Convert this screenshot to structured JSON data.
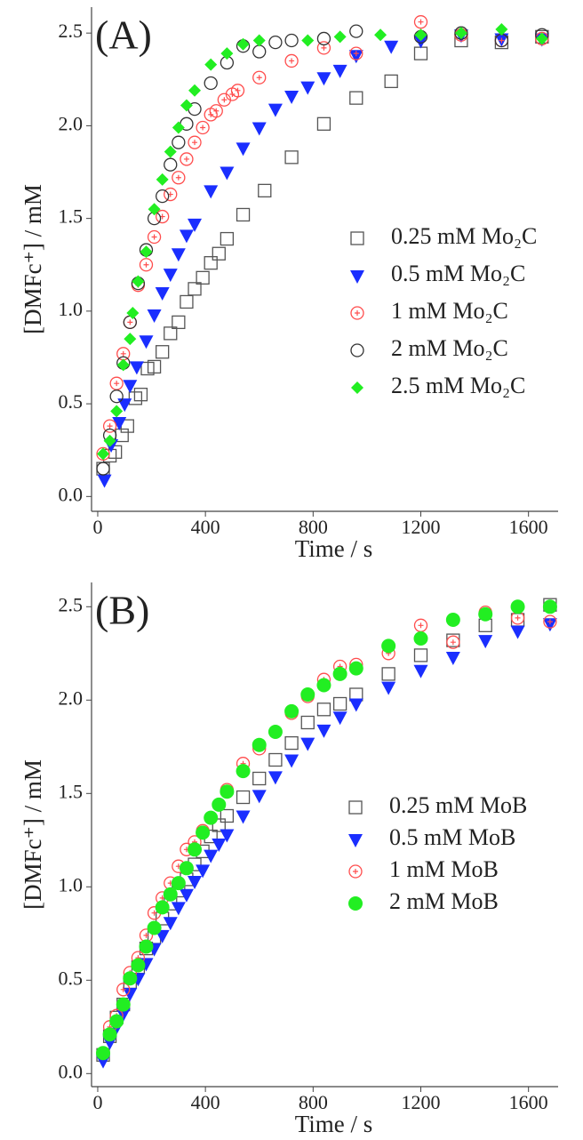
{
  "chart_data": [
    {
      "type": "scatter",
      "annotation": "(A)",
      "xlabel": "Time / s",
      "ylabel": "[DMFc⁺] / mM",
      "xlim": [
        -23,
        1710
      ],
      "ylim": [
        -0.08,
        2.64
      ],
      "xticks": [
        0,
        400,
        800,
        1200,
        1600
      ],
      "yticks": [
        {
          "value": 0,
          "label": "0.0"
        },
        0.5,
        {
          "value": 1,
          "label": "1.0"
        },
        1.5,
        {
          "value": 2,
          "label": "2.0"
        },
        2.5
      ],
      "series": [
        {
          "name": "0.25 mM Mo₂C",
          "color": "#555555",
          "marker": "square",
          "x": [
            20,
            45,
            65,
            90,
            110,
            140,
            160,
            185,
            210,
            240,
            270,
            300,
            330,
            360,
            390,
            420,
            450,
            480,
            540,
            620,
            720,
            840,
            960,
            1090,
            1200,
            1350,
            1500,
            1650
          ],
          "values": [
            0.15,
            0.22,
            0.24,
            0.33,
            0.38,
            0.53,
            0.55,
            0.69,
            0.7,
            0.78,
            0.88,
            0.94,
            1.05,
            1.12,
            1.18,
            1.26,
            1.31,
            1.39,
            1.52,
            1.65,
            1.83,
            2.01,
            2.15,
            2.24,
            2.39,
            2.46,
            2.45,
            2.48
          ]
        },
        {
          "name": "0.5 mM Mo₂C",
          "color": "#1a2eff",
          "marker": "triangle-down",
          "x": [
            25,
            50,
            80,
            100,
            120,
            145,
            180,
            210,
            240,
            270,
            300,
            330,
            360,
            420,
            480,
            540,
            600,
            660,
            720,
            780,
            840,
            900,
            960,
            1090,
            1200,
            1350,
            1500,
            1650
          ],
          "values": [
            0.09,
            0.28,
            0.4,
            0.5,
            0.6,
            0.7,
            0.84,
            0.98,
            1.1,
            1.2,
            1.31,
            1.41,
            1.47,
            1.65,
            1.75,
            1.88,
            1.99,
            2.09,
            2.16,
            2.21,
            2.26,
            2.3,
            2.38,
            2.43,
            2.46,
            2.49,
            2.47,
            2.47
          ]
        },
        {
          "name": "1 mM Mo₂C",
          "color": "#ff4d4d",
          "marker": "circle-plus",
          "x": [
            20,
            45,
            70,
            95,
            120,
            150,
            180,
            210,
            240,
            270,
            300,
            330,
            360,
            390,
            420,
            440,
            470,
            500,
            520,
            600,
            720,
            840,
            960,
            1200,
            1350,
            1500,
            1650
          ],
          "values": [
            0.23,
            0.38,
            0.61,
            0.77,
            0.94,
            1.14,
            1.25,
            1.4,
            1.51,
            1.63,
            1.72,
            1.82,
            1.91,
            1.99,
            2.06,
            2.08,
            2.14,
            2.17,
            2.19,
            2.26,
            2.35,
            2.42,
            2.39,
            2.56,
            2.49,
            2.46,
            2.47
          ]
        },
        {
          "name": "2 mM Mo₂C",
          "color": "#333333",
          "marker": "circle",
          "x": [
            20,
            45,
            70,
            95,
            120,
            150,
            180,
            210,
            240,
            270,
            300,
            330,
            360,
            420,
            480,
            540,
            600,
            660,
            720,
            840,
            960,
            1200,
            1350,
            1500,
            1650
          ],
          "values": [
            0.15,
            0.33,
            0.54,
            0.72,
            0.94,
            1.15,
            1.33,
            1.5,
            1.62,
            1.79,
            1.91,
            2.01,
            2.09,
            2.23,
            2.34,
            2.43,
            2.4,
            2.45,
            2.46,
            2.47,
            2.51,
            2.48,
            2.5,
            2.46,
            2.49
          ]
        },
        {
          "name": "2.5 mM Mo₂C",
          "color": "#22ee22",
          "marker": "diamond",
          "x": [
            20,
            45,
            70,
            95,
            120,
            130,
            150,
            180,
            210,
            240,
            270,
            300,
            330,
            360,
            420,
            480,
            540,
            600,
            780,
            900,
            1050,
            1200,
            1350,
            1500,
            1650
          ],
          "values": [
            0.23,
            0.3,
            0.46,
            0.71,
            0.85,
            0.99,
            1.16,
            1.32,
            1.55,
            1.71,
            1.86,
            1.99,
            2.11,
            2.19,
            2.33,
            2.39,
            2.44,
            2.46,
            2.46,
            2.48,
            2.49,
            2.49,
            2.5,
            2.52,
            2.47
          ]
        }
      ]
    },
    {
      "type": "scatter",
      "annotation": "(B)",
      "xlabel": "Time / s",
      "ylabel": "[DMFc⁺] / mM",
      "xlim": [
        -23,
        1710
      ],
      "ylim": [
        -0.07,
        2.63
      ],
      "xticks": [
        0,
        400,
        800,
        1200,
        1600
      ],
      "yticks": [
        {
          "value": 0,
          "label": "0.0"
        },
        0.5,
        {
          "value": 1,
          "label": "1.0"
        },
        1.5,
        {
          "value": 2,
          "label": "2.0"
        },
        2.5
      ],
      "series": [
        {
          "name": "0.25 mM MoB",
          "color": "#555555",
          "marker": "square",
          "x": [
            20,
            45,
            70,
            95,
            120,
            150,
            180,
            210,
            240,
            270,
            300,
            330,
            360,
            390,
            420,
            450,
            480,
            540,
            600,
            660,
            720,
            780,
            840,
            900,
            960,
            1080,
            1200,
            1320,
            1440,
            1560,
            1680
          ],
          "values": [
            0.1,
            0.2,
            0.3,
            0.37,
            0.49,
            0.57,
            0.67,
            0.73,
            0.83,
            0.91,
            0.98,
            1.04,
            1.12,
            1.19,
            1.27,
            1.33,
            1.38,
            1.48,
            1.58,
            1.68,
            1.77,
            1.88,
            1.95,
            1.98,
            2.03,
            2.14,
            2.24,
            2.32,
            2.4,
            2.43,
            2.51
          ]
        },
        {
          "name": "0.5 mM MoB",
          "color": "#1a2eff",
          "marker": "triangle-down",
          "x": [
            20,
            45,
            70,
            95,
            120,
            150,
            180,
            210,
            240,
            270,
            300,
            330,
            360,
            390,
            420,
            450,
            480,
            540,
            600,
            660,
            720,
            780,
            840,
            900,
            960,
            1080,
            1200,
            1320,
            1440,
            1560,
            1680
          ],
          "values": [
            0.07,
            0.17,
            0.25,
            0.32,
            0.43,
            0.51,
            0.59,
            0.67,
            0.74,
            0.81,
            0.89,
            0.96,
            1.03,
            1.09,
            1.17,
            1.23,
            1.28,
            1.38,
            1.49,
            1.59,
            1.68,
            1.77,
            1.84,
            1.91,
            1.98,
            2.07,
            2.16,
            2.23,
            2.32,
            2.37,
            2.41
          ]
        },
        {
          "name": "1 mM MoB",
          "color": "#ff4d4d",
          "marker": "circle-plus",
          "x": [
            20,
            45,
            70,
            95,
            120,
            150,
            180,
            210,
            240,
            270,
            300,
            330,
            360,
            390,
            420,
            450,
            480,
            540,
            600,
            660,
            720,
            780,
            840,
            900,
            960,
            1080,
            1200,
            1320,
            1440,
            1560,
            1680
          ],
          "values": [
            0.11,
            0.25,
            0.31,
            0.45,
            0.54,
            0.62,
            0.74,
            0.86,
            0.94,
            1.02,
            1.11,
            1.2,
            1.24,
            1.3,
            1.37,
            1.44,
            1.52,
            1.66,
            1.74,
            1.83,
            1.93,
            2.02,
            2.11,
            2.18,
            2.19,
            2.25,
            2.4,
            2.31,
            2.47,
            2.44,
            2.42
          ]
        },
        {
          "name": "2 mM MoB",
          "color": "#22ee22",
          "marker": "filled-circle",
          "x": [
            20,
            45,
            70,
            95,
            120,
            150,
            180,
            210,
            240,
            270,
            300,
            330,
            360,
            390,
            420,
            450,
            480,
            540,
            600,
            660,
            720,
            780,
            840,
            900,
            960,
            1080,
            1200,
            1320,
            1440,
            1560,
            1680
          ],
          "values": [
            0.11,
            0.21,
            0.28,
            0.37,
            0.51,
            0.58,
            0.68,
            0.78,
            0.89,
            0.96,
            1.02,
            1.1,
            1.2,
            1.29,
            1.37,
            1.44,
            1.51,
            1.62,
            1.76,
            1.83,
            1.94,
            2.03,
            2.08,
            2.14,
            2.17,
            2.29,
            2.33,
            2.43,
            2.46,
            2.5,
            2.5
          ]
        }
      ]
    }
  ]
}
